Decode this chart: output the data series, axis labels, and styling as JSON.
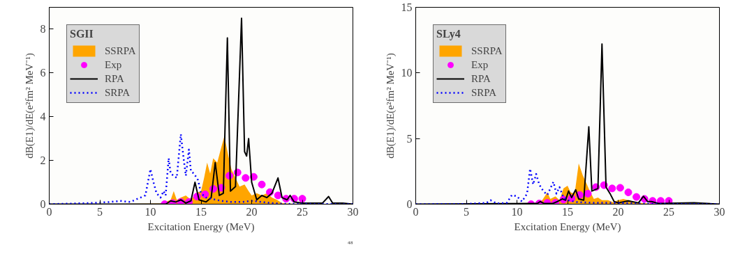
{
  "chart_data": [
    {
      "type": "line",
      "legend_title": "SGII",
      "xlabel": "Excitation Energy (MeV)",
      "ylabel": "dB(E1)/dE(e²fm² MeV⁻¹)",
      "xlim": [
        0,
        30
      ],
      "xticks": [
        0,
        5,
        10,
        15,
        20,
        25,
        30
      ],
      "ylim": [
        0,
        9
      ],
      "yticks": [
        0,
        2,
        4,
        6,
        8
      ],
      "grid": false,
      "legend": "top left",
      "annotations": [
        "⁴⁸"
      ],
      "series": [
        {
          "name": "SSRPA",
          "type": "area",
          "color": "#ffa500",
          "x": [
            0,
            9,
            11,
            11.5,
            12,
            12.3,
            12.6,
            13,
            13.5,
            14,
            14.5,
            15,
            15.3,
            15.6,
            15.9,
            16.2,
            16.6,
            17,
            17.3,
            17.7,
            18,
            18.4,
            18.8,
            19.3,
            19.7,
            20,
            20.5,
            21,
            21.5,
            22,
            22.5,
            23,
            24,
            30
          ],
          "values": [
            0,
            0.02,
            0.03,
            0.1,
            0.2,
            0.6,
            0.2,
            0.3,
            0.4,
            0.2,
            0.5,
            0.6,
            1.2,
            1.9,
            1.4,
            2.1,
            1.9,
            2.6,
            3.1,
            2.2,
            1.6,
            1.2,
            0.8,
            0.9,
            0.6,
            0.4,
            0.5,
            0.4,
            0.5,
            0.3,
            0.2,
            0.05,
            0.02,
            0
          ]
        },
        {
          "name": "Exp",
          "type": "scatter",
          "marker": "circle",
          "color": "#ff00ff",
          "x": [
            11.4,
            12.2,
            13.0,
            13.8,
            14.6,
            15.4,
            16.2,
            17.0,
            17.8,
            18.6,
            19.4,
            20.2,
            21.0,
            21.8,
            22.6,
            23.4,
            24.2,
            25.0
          ],
          "values": [
            0,
            0.05,
            0.1,
            0.1,
            0.35,
            0.45,
            0.7,
            0.75,
            1.3,
            1.45,
            1.2,
            1.25,
            0.9,
            0.55,
            0.4,
            0.25,
            0.25,
            0.25
          ]
        },
        {
          "name": "RPA",
          "line_style": "solid",
          "color": "#000000",
          "x": [
            0,
            11.5,
            12,
            12.5,
            13,
            13.5,
            14,
            14.4,
            14.8,
            15.5,
            16,
            16.4,
            16.8,
            17.2,
            17.6,
            17.9,
            18.4,
            19.0,
            19.3,
            19.5,
            19.7,
            20,
            20.5,
            21,
            21.5,
            22,
            22.6,
            23,
            23.5,
            23.8,
            24.2,
            25,
            27,
            27.6,
            28,
            29,
            30
          ],
          "values": [
            0,
            0,
            0.15,
            0.1,
            0.2,
            0.05,
            0.15,
            1.0,
            0.2,
            0.1,
            0.3,
            1.9,
            0.4,
            0.5,
            7.6,
            0.6,
            0.8,
            8.5,
            2.4,
            2.2,
            3.0,
            1.0,
            0.2,
            0.4,
            0.3,
            0.5,
            1.2,
            0.3,
            0.2,
            0.4,
            0.1,
            0.05,
            0.05,
            0.35,
            0.05,
            0.05,
            0
          ]
        },
        {
          "name": "SRPA",
          "line_style": "dotted",
          "color": "#0000ff",
          "x": [
            0,
            4,
            6,
            7,
            8,
            9,
            9.5,
            10,
            10.3,
            10.6,
            11,
            11.3,
            11.5,
            11.8,
            12,
            12.3,
            12.6,
            13,
            13.3,
            13.5,
            13.8,
            14,
            14.3,
            14.7,
            15,
            15.5,
            16,
            17,
            18,
            19,
            20,
            21,
            22,
            23,
            30
          ],
          "values": [
            0,
            0.05,
            0.1,
            0.15,
            0.1,
            0.3,
            0.4,
            1.6,
            1.0,
            0.5,
            0.3,
            0.6,
            0.4,
            2.1,
            1.4,
            1.3,
            1.2,
            3.2,
            2.0,
            1.3,
            2.5,
            1.5,
            1.4,
            1.1,
            0.5,
            0.3,
            0.25,
            0.15,
            0.1,
            0.1,
            0.15,
            0.1,
            0.05,
            0.02,
            0
          ]
        }
      ]
    },
    {
      "type": "line",
      "legend_title": "SLy4",
      "xlabel": "Excitation Energy (MeV)",
      "ylabel": "dB(E1)/dE(e²fm² MeV⁻¹)",
      "xlim": [
        0,
        30
      ],
      "xticks": [
        0,
        5,
        10,
        15,
        20,
        25,
        30
      ],
      "ylim": [
        0,
        15
      ],
      "yticks": [
        0,
        5,
        10,
        15
      ],
      "grid": false,
      "legend": "top left",
      "series": [
        {
          "name": "SSRPA",
          "type": "area",
          "color": "#ffa500",
          "x": [
            0,
            10,
            12,
            12.5,
            13,
            13.3,
            13.8,
            14.2,
            14.6,
            15,
            15.3,
            15.7,
            16.1,
            16.5,
            16.8,
            17.2,
            17.6,
            18,
            18.4,
            19,
            19.5,
            20,
            20.5,
            21,
            22,
            23,
            30
          ],
          "values": [
            0,
            0.05,
            0.05,
            0.3,
            0.9,
            0.4,
            0.6,
            0.3,
            1.2,
            1.4,
            0.9,
            0.8,
            3.1,
            2.2,
            1.7,
            1.0,
            0.4,
            0.5,
            0.3,
            0.3,
            0.15,
            0.3,
            0.4,
            0.3,
            0.1,
            0.05,
            0
          ]
        },
        {
          "name": "Exp",
          "type": "scatter",
          "marker": "circle",
          "color": "#ff00ff",
          "x": [
            11.4,
            12.2,
            13.0,
            13.8,
            14.6,
            15.4,
            16.2,
            17.0,
            17.8,
            18.6,
            19.4,
            20.2,
            21.0,
            21.8,
            22.6,
            23.4,
            24.2,
            25.0
          ],
          "values": [
            0,
            0.05,
            0.1,
            0.1,
            0.35,
            0.45,
            0.7,
            0.8,
            1.3,
            1.45,
            1.2,
            1.25,
            0.9,
            0.55,
            0.4,
            0.25,
            0.25,
            0.25
          ]
        },
        {
          "name": "RPA",
          "line_style": "solid",
          "color": "#000000",
          "x": [
            0,
            12,
            12.3,
            12.7,
            13.5,
            14,
            14.5,
            14.8,
            15.1,
            15.4,
            15.8,
            16.1,
            16.6,
            17.1,
            17.4,
            18,
            18.4,
            18.8,
            19.2,
            19.6,
            20,
            21,
            22,
            22.5,
            22.9,
            23.3,
            24,
            27.5,
            30
          ],
          "values": [
            0,
            0.05,
            0.2,
            0.05,
            0.05,
            0.2,
            0.4,
            0.3,
            1.0,
            0.5,
            1.1,
            0.4,
            0.3,
            5.9,
            1.0,
            1.2,
            12.2,
            1.3,
            0.8,
            0.2,
            0.1,
            0.25,
            0.1,
            0.6,
            0.2,
            0.2,
            0.05,
            0.1,
            0
          ]
        },
        {
          "name": "SRPA",
          "line_style": "dotted",
          "color": "#0000ff",
          "x": [
            0,
            5,
            7,
            7.4,
            8,
            9,
            9.5,
            10,
            10.5,
            11,
            11.3,
            11.6,
            11.9,
            12.2,
            12.6,
            13,
            13.6,
            13.9,
            14.2,
            14.6,
            15,
            16,
            18,
            20,
            22,
            24,
            30
          ],
          "values": [
            0,
            0.02,
            0.1,
            0.3,
            0.05,
            0.1,
            0.7,
            0.6,
            0.2,
            0.8,
            2.7,
            1.5,
            2.3,
            1.5,
            1.0,
            0.7,
            1.7,
            0.8,
            1.3,
            0.5,
            0.3,
            0.15,
            0.1,
            0.1,
            0.05,
            0.02,
            0
          ]
        }
      ]
    }
  ]
}
